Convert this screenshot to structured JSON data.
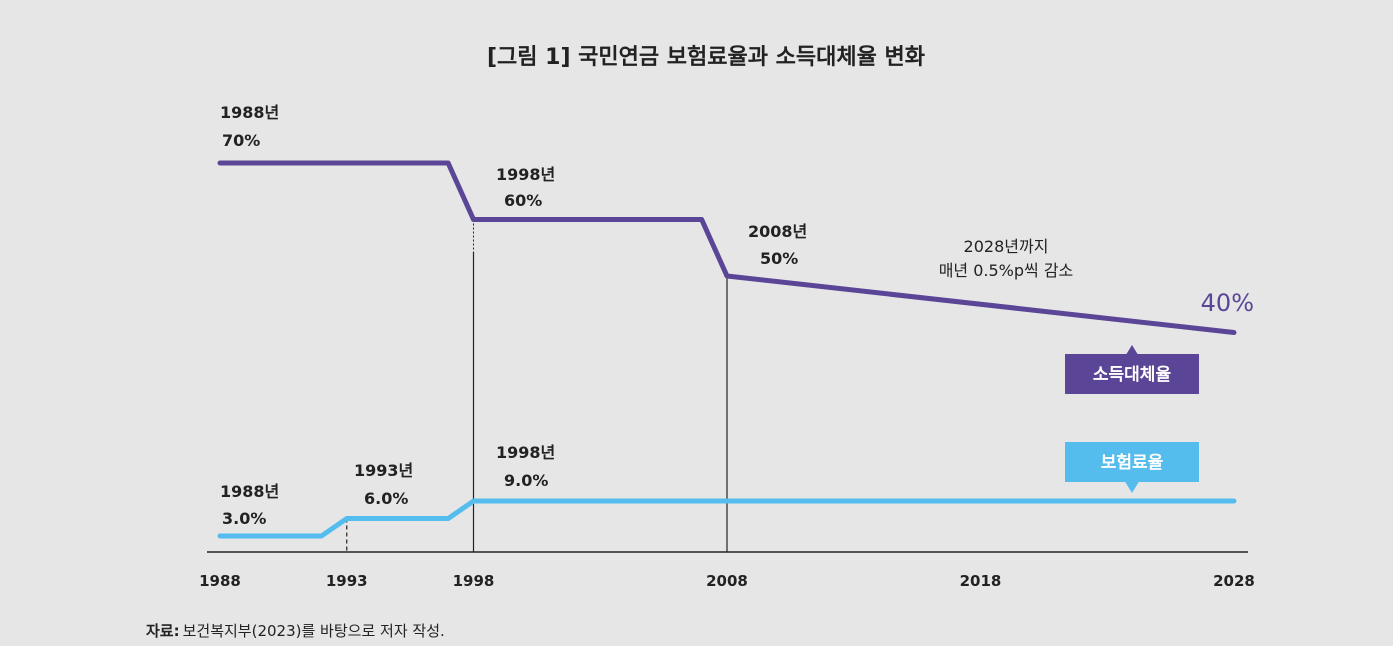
{
  "chart_data": {
    "type": "line",
    "title": "[그림 1] 국민연금 보험료율과 소득대체율 변화",
    "x_ticks": [
      "1988",
      "1993",
      "1998",
      "2008",
      "2018",
      "2028"
    ],
    "xlim": [
      1988,
      2028
    ],
    "grid": false,
    "series": [
      {
        "name": "소득대체율",
        "unit": "%",
        "color": "#5b4596",
        "points": [
          [
            1988,
            70
          ],
          [
            1997,
            70
          ],
          [
            1998,
            60
          ],
          [
            2007,
            60
          ],
          [
            2008,
            50
          ],
          [
            2028,
            40
          ]
        ]
      },
      {
        "name": "보험료율",
        "unit": "%",
        "color": "#55bdee",
        "points": [
          [
            1988,
            3.0
          ],
          [
            1992,
            3.0
          ],
          [
            1993,
            6.0
          ],
          [
            1997,
            6.0
          ],
          [
            1998,
            9.0
          ],
          [
            2028,
            9.0
          ]
        ]
      }
    ],
    "annotations": {
      "r1988": [
        "1988년",
        "70%"
      ],
      "r1998": [
        "1998년",
        "60%"
      ],
      "r2008": [
        "2008년",
        "50%"
      ],
      "r2028": [
        "2028년까지",
        "매년 0.5%p씩 감소"
      ],
      "r_end": "40%",
      "p1988": [
        "1988년",
        "3.0%"
      ],
      "p1993": [
        "1993년",
        "6.0%"
      ],
      "p1998": [
        "1998년",
        "9.0%"
      ]
    },
    "source_label": "자료:",
    "source_text": "보건복지부(2023)를 바탕으로 저자 작성."
  }
}
